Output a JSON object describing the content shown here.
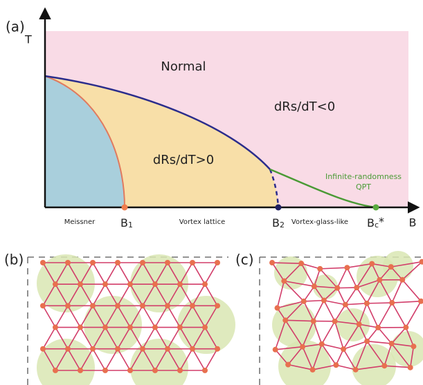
{
  "panel_a": {
    "label": "(a)",
    "y_axis": "T",
    "x_axis": "B",
    "regions": {
      "normal": "Normal",
      "negative": "dRs/dT<0",
      "positive": "dRs/dT>0",
      "qpt": [
        "Infinite-randomness",
        "QPT"
      ]
    },
    "phases": [
      "Meissner",
      "Vortex lattice",
      "Vortex-glass-like"
    ],
    "fields": [
      {
        "symbol": "B",
        "sub": "1"
      },
      {
        "symbol": "B",
        "sub": "2"
      },
      {
        "symbol": "B",
        "sub": "c",
        "sup": "*"
      }
    ]
  },
  "panel_b": {
    "label": "(b)"
  },
  "panel_c": {
    "label": "(c)"
  }
}
